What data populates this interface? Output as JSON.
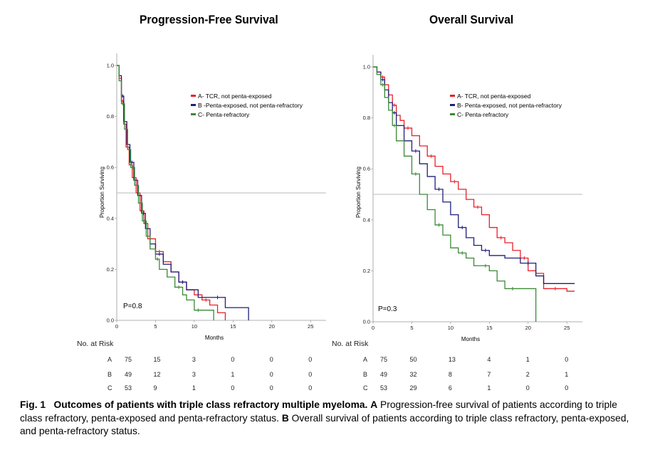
{
  "panels": [
    {
      "title": "Progression-Free Survival",
      "ylabel": "Proportion Surviving",
      "xlabel": "Months",
      "pvalue": "P=0.8"
    },
    {
      "title": "Overall Survival",
      "ylabel": "Proportion Surviving",
      "xlabel": "Months",
      "pvalue": "P=0.3"
    }
  ],
  "colors": {
    "A": "#e8202a",
    "B": "#1f1f7a",
    "C": "#3a8a35",
    "reference": "#b8b8b8"
  },
  "at_risk": {
    "label": "No. at Risk",
    "group_labels": [
      "A",
      "B",
      "C"
    ]
  },
  "caption": {
    "fig": "Fig. 1",
    "bold_title": "Outcomes of patients with triple class refractory multiple myeloma.",
    "a_label": "A",
    "a_text": "Progression-free survival of patients according to triple class refractory, penta-exposed and penta-refractory status.",
    "b_label": "B",
    "b_text": "Overall survival of patients according to triple class refractory, penta-exposed, and penta-refractory status."
  },
  "chart_data": [
    {
      "type": "line",
      "subtype": "kaplan-meier",
      "title": "Progression-Free Survival",
      "xlabel": "Months",
      "ylabel": "Proportion Surviving",
      "xlim": [
        0,
        27
      ],
      "ylim": [
        0,
        1.0
      ],
      "xticks": [
        0,
        5,
        10,
        15,
        20,
        25
      ],
      "yticks": [
        0.0,
        0.2,
        0.4,
        0.6,
        0.8,
        1.0
      ],
      "ytick_labels": [
        "0.0",
        "0.2",
        "0.4",
        "0.6",
        "0.8",
        "1.0"
      ],
      "reference_line_y": 0.5,
      "legend_position": "top-right",
      "annotation": "P=0.8",
      "series": [
        {
          "name": "A- TCR, not penta-exposed",
          "group": "A",
          "x": [
            0,
            0.3,
            0.6,
            0.9,
            1.2,
            1.6,
            2.0,
            2.5,
            3.0,
            3.5,
            4.0,
            5.0,
            6.0,
            7.0,
            8.0,
            9.0,
            10.0,
            11.0,
            12.0,
            13.0,
            14.0
          ],
          "y": [
            1.0,
            0.95,
            0.86,
            0.77,
            0.68,
            0.61,
            0.56,
            0.5,
            0.43,
            0.38,
            0.32,
            0.27,
            0.23,
            0.19,
            0.15,
            0.12,
            0.1,
            0.08,
            0.06,
            0.03,
            0.0
          ]
        },
        {
          "name": "B -Penta-exposed, not penta-refractory",
          "group": "B",
          "x": [
            0,
            0.3,
            0.6,
            0.9,
            1.3,
            1.7,
            2.2,
            2.7,
            3.2,
            3.7,
            4.3,
            5.0,
            6.0,
            7.0,
            8.0,
            9.0,
            10.5,
            12.0,
            14.0,
            17.0
          ],
          "y": [
            1.0,
            0.96,
            0.88,
            0.78,
            0.69,
            0.62,
            0.55,
            0.49,
            0.42,
            0.36,
            0.3,
            0.26,
            0.22,
            0.19,
            0.15,
            0.12,
            0.09,
            0.09,
            0.05,
            0.0
          ]
        },
        {
          "name": "C- Penta-refractory",
          "group": "C",
          "x": [
            0,
            0.3,
            0.6,
            1.0,
            1.4,
            1.8,
            2.3,
            2.8,
            3.3,
            3.8,
            4.3,
            5.0,
            5.5,
            6.5,
            7.5,
            8.5,
            9.0,
            10.0,
            11.0,
            12.5
          ],
          "y": [
            1.0,
            0.94,
            0.85,
            0.75,
            0.67,
            0.6,
            0.53,
            0.46,
            0.39,
            0.33,
            0.28,
            0.24,
            0.2,
            0.17,
            0.13,
            0.1,
            0.08,
            0.04,
            0.04,
            0.0
          ]
        }
      ],
      "at_risk": {
        "times": [
          0,
          5,
          10,
          15,
          20,
          25
        ],
        "A": [
          75,
          15,
          3,
          0,
          0,
          0
        ],
        "B": [
          49,
          12,
          3,
          1,
          0,
          0
        ],
        "C": [
          53,
          9,
          1,
          0,
          0,
          0
        ]
      }
    },
    {
      "type": "line",
      "subtype": "kaplan-meier",
      "title": "Overall Survival",
      "xlabel": "Months",
      "ylabel": "Proportion Surviving",
      "xlim": [
        0,
        27
      ],
      "ylim": [
        0,
        1.0
      ],
      "xticks": [
        0,
        5,
        10,
        15,
        20,
        25
      ],
      "yticks": [
        0.0,
        0.2,
        0.4,
        0.6,
        0.8,
        1.0
      ],
      "ytick_labels": [
        "0.0",
        "0.2",
        "0.4",
        "0.6",
        "0.8",
        "1.0"
      ],
      "reference_line_y": 0.5,
      "legend_position": "top-right",
      "annotation": "P=0.3",
      "series": [
        {
          "name": "A- TCR, not penta-exposed",
          "group": "A",
          "x": [
            0,
            0.5,
            1.0,
            1.5,
            2.0,
            2.5,
            3.0,
            3.5,
            4.0,
            5.0,
            6.0,
            7.0,
            8.0,
            9.0,
            10.0,
            11.0,
            12.0,
            13.0,
            14.0,
            15.0,
            16.0,
            17.0,
            18.0,
            19.0,
            20.0,
            21.0,
            22.0,
            25.0,
            26.0
          ],
          "y": [
            1.0,
            0.98,
            0.96,
            0.93,
            0.89,
            0.85,
            0.81,
            0.79,
            0.76,
            0.73,
            0.69,
            0.65,
            0.61,
            0.58,
            0.55,
            0.52,
            0.48,
            0.45,
            0.42,
            0.37,
            0.33,
            0.31,
            0.28,
            0.25,
            0.2,
            0.19,
            0.13,
            0.12,
            0.12
          ]
        },
        {
          "name": "B- Penta-exposed, not penta-refractory",
          "group": "B",
          "x": [
            0,
            0.5,
            1.0,
            1.5,
            2.0,
            2.5,
            3.0,
            4.0,
            5.0,
            6.0,
            7.0,
            8.0,
            9.0,
            10.0,
            11.0,
            12.0,
            13.0,
            14.0,
            15.0,
            17.0,
            19.0,
            21.0,
            22.0,
            26.0
          ],
          "y": [
            1.0,
            0.98,
            0.95,
            0.91,
            0.86,
            0.82,
            0.77,
            0.71,
            0.67,
            0.62,
            0.57,
            0.52,
            0.47,
            0.42,
            0.37,
            0.33,
            0.3,
            0.28,
            0.26,
            0.25,
            0.23,
            0.18,
            0.15,
            0.15
          ]
        },
        {
          "name": "C- Penta-refractory",
          "group": "C",
          "x": [
            0,
            0.5,
            1.0,
            1.5,
            2.0,
            2.5,
            3.0,
            4.0,
            5.0,
            6.0,
            7.0,
            8.0,
            9.0,
            10.0,
            11.0,
            12.0,
            13.0,
            14.0,
            15.0,
            16.0,
            17.0,
            19.0,
            21.0
          ],
          "y": [
            1.0,
            0.97,
            0.93,
            0.88,
            0.83,
            0.77,
            0.71,
            0.65,
            0.58,
            0.5,
            0.44,
            0.38,
            0.34,
            0.29,
            0.27,
            0.25,
            0.22,
            0.22,
            0.2,
            0.16,
            0.13,
            0.13,
            0.0
          ]
        }
      ],
      "at_risk": {
        "times": [
          0,
          5,
          10,
          15,
          20,
          25
        ],
        "A": [
          75,
          50,
          13,
          4,
          1,
          0
        ],
        "B": [
          49,
          32,
          8,
          7,
          2,
          1
        ],
        "C": [
          53,
          29,
          6,
          1,
          0,
          0
        ]
      }
    }
  ]
}
